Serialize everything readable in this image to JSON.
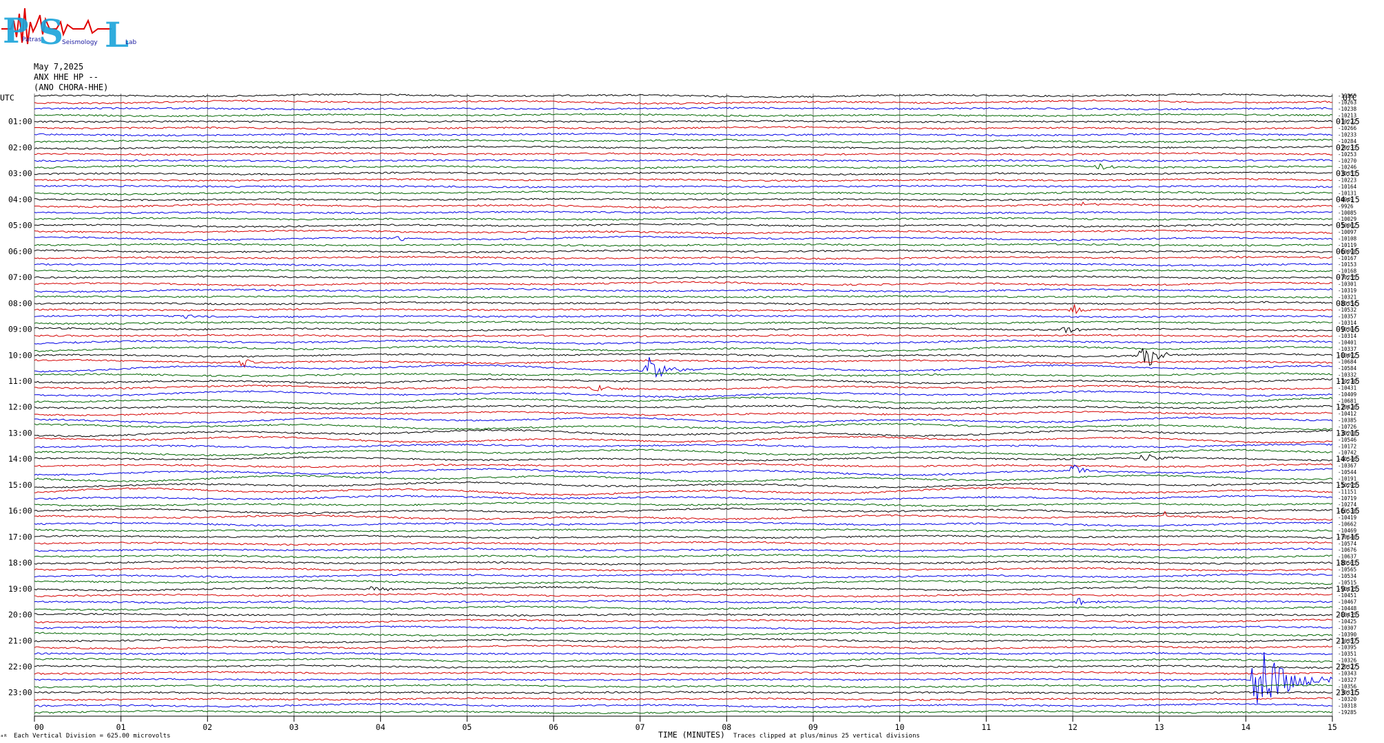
{
  "header": {
    "logo_text": "PSL",
    "logo_words": [
      "Patras",
      "Seismology",
      "Lab"
    ],
    "date": "May 7,2025",
    "station": "ANX HHE HP --",
    "location": "(ANO CHORA-HHE)"
  },
  "axis": {
    "utc_left": "UTC",
    "utc_right": "UTC",
    "xlabel": "TIME (MINUTES)",
    "footer_left": "Each Vertical Division =  625.00 microvolts",
    "footer_right": "Traces clipped at plus/minus 25 vertical divisions",
    "corner_mark": "ᵃᴿ"
  },
  "chart_data": {
    "type": "line",
    "title": "",
    "xlabel": "TIME (MINUTES)",
    "x_ticks": [
      "00",
      "01",
      "02",
      "03",
      "04",
      "05",
      "06",
      "07",
      "08",
      "09",
      "10",
      "11",
      "12",
      "13",
      "14",
      "15"
    ],
    "xlim": [
      0,
      15
    ],
    "grid": true,
    "trace_colors": [
      "#000000",
      "#d40000",
      "#0000e6",
      "#006400"
    ],
    "left_hour_labels": [
      "01:00",
      "02:00",
      "03:00",
      "04:00",
      "05:00",
      "06:00",
      "07:00",
      "08:00",
      "09:00",
      "10:00",
      "11:00",
      "12:00",
      "13:00",
      "14:00",
      "15:00",
      "16:00",
      "17:00",
      "18:00",
      "19:00",
      "20:00",
      "21:00",
      "22:00",
      "23:00"
    ],
    "right_hour_labels": [
      "01:15",
      "02:15",
      "03:15",
      "04:15",
      "05:15",
      "06:15",
      "07:15",
      "08:15",
      "09:15",
      "10:15",
      "11:15",
      "12:15",
      "13:15",
      "14:15",
      "15:15",
      "16:15",
      "17:15",
      "18:15",
      "19:15",
      "20:15",
      "21:15",
      "22:15",
      "23:15"
    ],
    "trace_offsets": [
      "-19265",
      "-10263",
      "-10238",
      "-10213",
      "-10222",
      "-10266",
      "-10233",
      "-10284",
      "-10233",
      "-10253",
      "-10270",
      "-10246",
      "-10353",
      "-10223",
      "-10164",
      "-10131",
      "-9949",
      "-9926",
      "-10085",
      "-10029",
      "-10062",
      "-10097",
      "-10108",
      "-10119",
      "-10098",
      "-10167",
      "-10153",
      "-10168",
      "-10255",
      "-10301",
      "-10319",
      "-10321",
      "-10354",
      "-10532",
      "-10357",
      "-10314",
      "-10304",
      "-10314",
      "-10401",
      "-10337",
      "-10492",
      "-10684",
      "-10584",
      "-10332",
      "-10270",
      "-10431",
      "-10409",
      "-10681",
      "-10426",
      "-10412",
      "-10385",
      "-10726",
      "-10208",
      "-10546",
      "-10172",
      "-10742",
      "-10546",
      "-10367",
      "-10544",
      "-10191",
      "-10295",
      "-11151",
      "-10719",
      "-10274",
      "-10538",
      "-10419",
      "-10662",
      "-10469",
      "-10640",
      "-10574",
      "-10676",
      "-10637",
      "-10563",
      "-10565",
      "-10534",
      "-10515",
      "-10475",
      "-10451",
      "-10467",
      "-10448",
      "-10435",
      "-10425",
      "-10307",
      "-10390",
      "-10357",
      "-10395",
      "-10351",
      "-10326",
      "-10327",
      "-10343",
      "-10327",
      "-10356",
      "-10331",
      "-10320",
      "-10318",
      "-19285"
    ],
    "events": [
      {
        "row": 40,
        "minute": 12.8,
        "amplitude": 3.0,
        "width": 0.35,
        "color": "#000000"
      },
      {
        "row": 42,
        "minute": 7.1,
        "amplitude": 2.2,
        "width": 0.45,
        "color": "#0000e6"
      },
      {
        "row": 41,
        "minute": 2.4,
        "amplitude": 0.8,
        "width": 0.3,
        "color": "#d40000"
      },
      {
        "row": 45,
        "minute": 6.5,
        "amplitude": 0.7,
        "width": 0.5,
        "color": "#d40000"
      },
      {
        "row": 33,
        "minute": 12.0,
        "amplitude": 0.9,
        "width": 0.3,
        "color": "#d40000"
      },
      {
        "row": 58,
        "minute": 12.0,
        "amplitude": 1.2,
        "width": 0.35,
        "color": "#d40000"
      },
      {
        "row": 56,
        "minute": 12.8,
        "amplitude": 0.9,
        "width": 0.3,
        "color": "#000000"
      },
      {
        "row": 65,
        "minute": 13.05,
        "amplitude": 1.2,
        "width": 0.1,
        "color": "#d40000"
      },
      {
        "row": 78,
        "minute": 12.05,
        "amplitude": 0.9,
        "width": 0.25,
        "color": "#0000e6"
      },
      {
        "row": 90,
        "minute": 14.15,
        "amplitude": 5.5,
        "width": 0.8,
        "color": "#0000e6"
      },
      {
        "row": 36,
        "minute": 11.9,
        "amplitude": 0.6,
        "width": 0.4,
        "color": "#000000"
      },
      {
        "row": 34,
        "minute": 1.7,
        "amplitude": 0.6,
        "width": 0.3,
        "color": "#0000e6"
      },
      {
        "row": 76,
        "minute": 3.9,
        "amplitude": 0.6,
        "width": 0.3,
        "color": "#000000"
      },
      {
        "row": 11,
        "minute": 12.3,
        "amplitude": 0.6,
        "width": 0.4,
        "color": "#006400"
      },
      {
        "row": 22,
        "minute": 4.2,
        "amplitude": 0.5,
        "width": 0.3,
        "color": "#d40000"
      },
      {
        "row": 17,
        "minute": 12.1,
        "amplitude": 0.5,
        "width": 0.2,
        "color": "#0000e6"
      }
    ]
  }
}
